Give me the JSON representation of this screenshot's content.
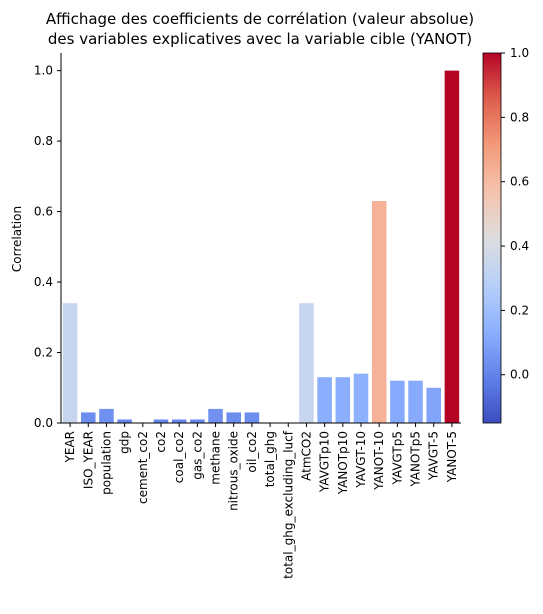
{
  "chart_data": {
    "type": "bar",
    "title_lines": [
      "Affichage des coefficients de corrélation (valeur absolue)",
      "des variables explicatives avec la variable cible (YANOT)"
    ],
    "xlabel": "",
    "ylabel": "Correlation",
    "ylim": [
      0,
      1.05
    ],
    "yticks": [
      "0.0",
      "0.2",
      "0.4",
      "0.6",
      "0.8",
      "1.0"
    ],
    "categories": [
      "YEAR",
      "ISO_YEAR",
      "population",
      "gdp",
      "cement_co2",
      "co2",
      "coal_co2",
      "gas_co2",
      "methane",
      "nitrous_oxide",
      "oil_co2",
      "total_ghg",
      "total_ghg_excluding_lucf",
      "AtmCO2",
      "YAVGTp10",
      "YANOTp10",
      "YAVGT-10",
      "YANOT-10",
      "YAVGTp5",
      "YANOTp5",
      "YAVGT-5",
      "YANOT-5"
    ],
    "values": [
      0.34,
      0.03,
      0.04,
      0.01,
      0.0,
      0.01,
      0.01,
      0.01,
      0.04,
      0.03,
      0.03,
      0.0,
      0.0,
      0.34,
      0.13,
      0.13,
      0.14,
      0.63,
      0.12,
      0.12,
      0.1,
      1.0
    ],
    "colorbar": {
      "colormap": "coolwarm",
      "range": [
        -0.15,
        1.0
      ],
      "ticks": [
        "0.0",
        "0.2",
        "0.4",
        "0.6",
        "0.8",
        "1.0"
      ]
    },
    "grid": false,
    "legend": "none"
  }
}
